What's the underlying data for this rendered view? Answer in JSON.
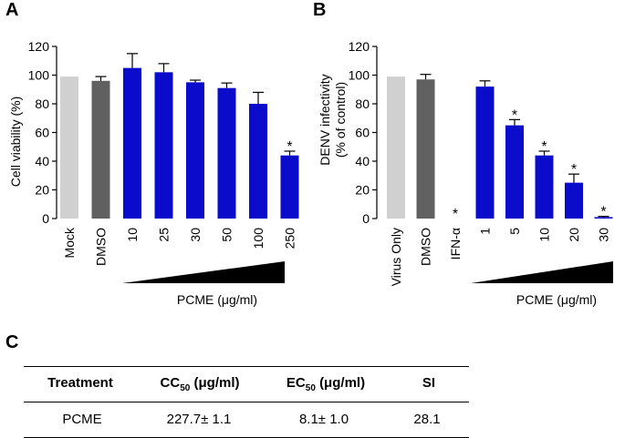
{
  "panels": {
    "a": "A",
    "b": "B",
    "c": "C"
  },
  "colors": {
    "control": "#d0d0d0",
    "dmso": "#606060",
    "pcme": "#0b0bcc",
    "axis": "#000000"
  },
  "chart_data": [
    {
      "type": "bar",
      "panel": "A",
      "ylabel": "Cell viability (%)",
      "ylim": [
        0,
        120
      ],
      "yticks": [
        0,
        20,
        40,
        60,
        80,
        100,
        120
      ],
      "categories": [
        "Mock",
        "DMSO",
        "10",
        "25",
        "30",
        "50",
        "100",
        "250"
      ],
      "values": [
        99,
        96,
        105,
        102,
        95,
        91,
        80,
        44
      ],
      "errors": [
        0,
        3,
        10,
        6,
        1.5,
        3.5,
        8,
        3
      ],
      "bar_roles": [
        "control",
        "dmso",
        "pcme",
        "pcme",
        "pcme",
        "pcme",
        "pcme",
        "pcme"
      ],
      "significant": [
        false,
        false,
        false,
        false,
        false,
        false,
        false,
        true
      ],
      "sig_mark": "*",
      "gradient_label": "PCME (μg/ml)"
    },
    {
      "type": "bar",
      "panel": "B",
      "ylabel_line1": "DENV infectivity",
      "ylabel_line2": "(% of control)",
      "ylim": [
        0,
        120
      ],
      "yticks": [
        0,
        20,
        40,
        60,
        80,
        100,
        120
      ],
      "categories": [
        "Virus Only",
        "DMSO",
        "IFN-α",
        "1",
        "5",
        "10",
        "20",
        "30"
      ],
      "values": [
        99,
        97,
        0,
        92,
        65,
        44,
        25,
        1
      ],
      "errors": [
        0,
        3.5,
        0,
        4,
        4,
        3,
        6,
        0.5
      ],
      "bar_roles": [
        "control",
        "dmso",
        "pcme",
        "pcme",
        "pcme",
        "pcme",
        "pcme",
        "pcme"
      ],
      "significant": [
        false,
        false,
        true,
        false,
        true,
        true,
        true,
        true
      ],
      "sig_mark": "*",
      "gradient_label": "PCME (μg/ml)"
    }
  ],
  "table": {
    "headers": {
      "treatment": "Treatment",
      "cc_main": "CC",
      "cc_sub": "50",
      "cc_unit": " (μg/ml)",
      "ec_main": "EC",
      "ec_sub": "50",
      "ec_unit": " (μg/ml)",
      "si": "SI"
    },
    "row": {
      "treatment": "PCME",
      "cc50": "227.7± 1.1",
      "ec50": "8.1± 1.0",
      "si": "28.1"
    }
  }
}
